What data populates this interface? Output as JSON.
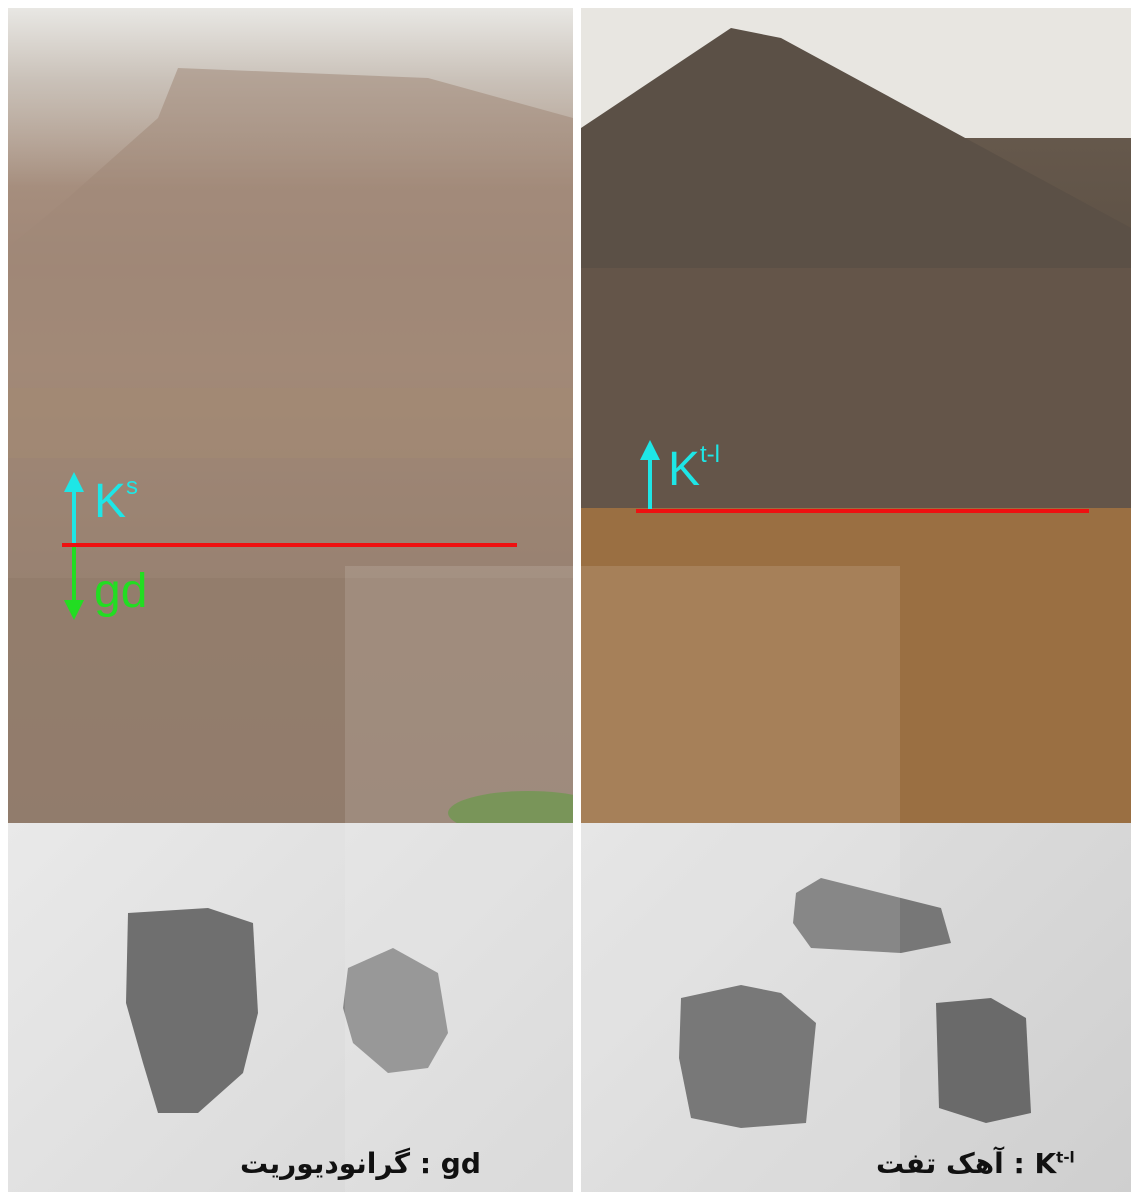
{
  "left_outcrop": {
    "upper_label": {
      "main": "K",
      "sup": "s"
    },
    "lower_label": "gd",
    "colors": {
      "upper": "#1ee6e6",
      "lower": "#22dd22",
      "contact": "#ee1111"
    }
  },
  "right_outcrop": {
    "upper_label": {
      "main": "K",
      "sup": "t-l"
    },
    "colors": {
      "upper": "#1ee6e6",
      "contact": "#ee1111"
    }
  },
  "captions": {
    "left": {
      "code": "gd",
      "separator": " : ",
      "name": "گرانودیوریت"
    },
    "right": {
      "code": "K",
      "sup": "t-l",
      "separator": " : ",
      "name": "آهک تفت"
    }
  }
}
